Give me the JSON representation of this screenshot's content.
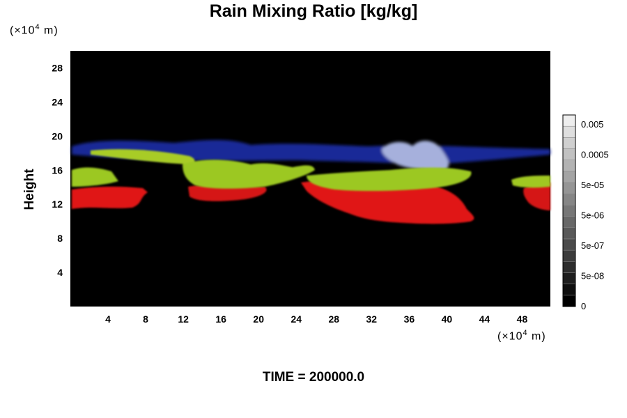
{
  "chart_data": {
    "type": "heatmap",
    "title": "Rain Mixing Ratio [kg/kg]",
    "ylabel": "Height",
    "xlabel": "",
    "x_unit": "(×10",
    "x_unit_exp": "4",
    "x_unit_tail": " m)",
    "y_unit": "(×10",
    "y_unit_exp": "4",
    "y_unit_tail": " m)",
    "x_ticks": [
      "4",
      "8",
      "12",
      "16",
      "20",
      "24",
      "28",
      "32",
      "36",
      "40",
      "44",
      "48"
    ],
    "y_ticks": [
      "4",
      "8",
      "12",
      "16",
      "20",
      "24",
      "28"
    ],
    "xlim": [
      0,
      51
    ],
    "ylim": [
      0,
      30
    ],
    "colorbar": {
      "labels": [
        "0.005",
        "0.0005",
        "5e-05",
        "5e-06",
        "5e-07",
        "5e-08",
        "0"
      ],
      "levels": 17
    },
    "colors": {
      "background": "#000000",
      "red": "#e01818",
      "yellowgreen": "#9cc820",
      "blue": "#1a2ea8",
      "lightblue": "#b8c4f4"
    },
    "time_label": "TIME = 200000.0"
  }
}
